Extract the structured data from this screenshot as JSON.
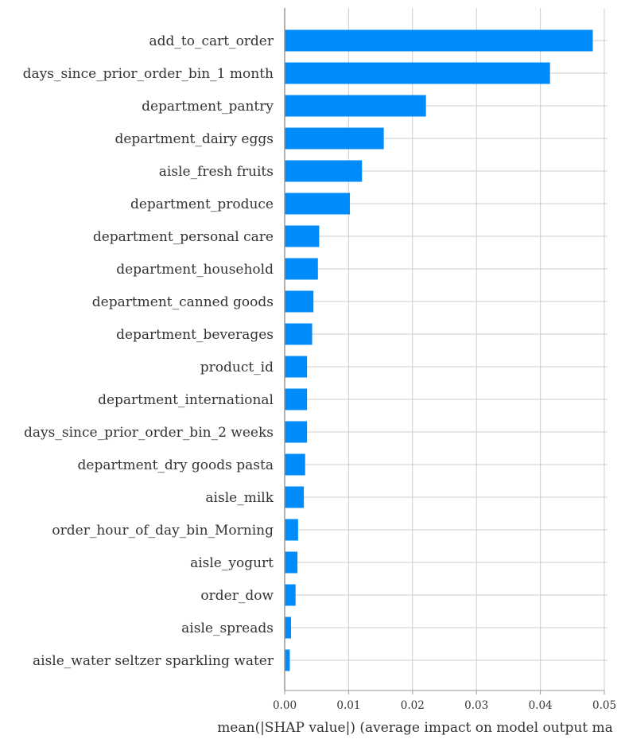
{
  "chart_data": {
    "type": "bar",
    "orientation": "horizontal",
    "categories": [
      "add_to_cart_order",
      "days_since_prior_order_bin_1 month",
      "department_pantry",
      "department_dairy eggs",
      "aisle_fresh fruits",
      "department_produce",
      "department_personal care",
      "department_household",
      "department_canned goods",
      "department_beverages",
      "product_id",
      "department_international",
      "days_since_prior_order_bin_2 weeks",
      "department_dry goods pasta",
      "aisle_milk",
      "order_hour_of_day_bin_Morning",
      "aisle_yogurt",
      "order_dow",
      "aisle_spreads",
      "aisle_water seltzer sparkling water"
    ],
    "values": [
      0.0482,
      0.0415,
      0.0221,
      0.0155,
      0.0121,
      0.0102,
      0.0054,
      0.0052,
      0.0045,
      0.0043,
      0.0035,
      0.0035,
      0.0035,
      0.0032,
      0.003,
      0.0021,
      0.002,
      0.0017,
      0.001,
      0.0008
    ],
    "xlabel": "mean(|SHAP value|) (average impact on model output ma",
    "xlim": [
      0.0,
      0.05
    ],
    "xticks": [
      "0.00",
      "0.01",
      "0.02",
      "0.03",
      "0.04",
      "0.05"
    ],
    "grid": true,
    "colors": {
      "bar": "#008bfb",
      "grid": "#cccccc",
      "axis": "#999999",
      "text": "#333333"
    }
  }
}
